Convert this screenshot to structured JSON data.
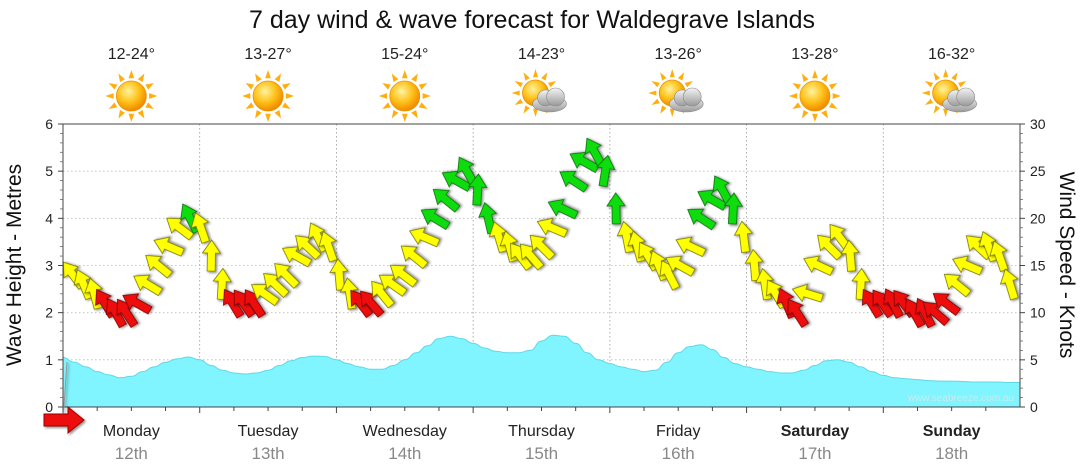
{
  "chart_data": {
    "type": "line+area",
    "title": "7 day wind & wave forecast for Waldegrave Islands",
    "ylabel_left": "Wave Height - Metres",
    "ylabel_right": "Wind Speed - Knots",
    "ylim_left": [
      0,
      6
    ],
    "ylim_right": [
      0,
      30
    ],
    "yticks_left": [
      "0",
      "1",
      "2",
      "3",
      "4",
      "5",
      "6"
    ],
    "yticks_right": [
      "0",
      "5",
      "10",
      "15",
      "20",
      "25",
      "30"
    ],
    "days": [
      {
        "name": "Monday",
        "date": "12th",
        "temp": "12-24°",
        "weather": "sunny",
        "bold": false
      },
      {
        "name": "Tuesday",
        "date": "13th",
        "temp": "13-27°",
        "weather": "sunny",
        "bold": false
      },
      {
        "name": "Wednesday",
        "date": "14th",
        "temp": "15-24°",
        "weather": "sunny",
        "bold": false
      },
      {
        "name": "Thursday",
        "date": "15th",
        "temp": "14-23°",
        "weather": "partly-cloudy",
        "bold": false
      },
      {
        "name": "Friday",
        "date": "16th",
        "temp": "13-26°",
        "weather": "partly-cloudy",
        "bold": false
      },
      {
        "name": "Saturday",
        "date": "17th",
        "temp": "13-28°",
        "weather": "sunny",
        "bold": true
      },
      {
        "name": "Sunday",
        "date": "18th",
        "temp": "16-32°",
        "weather": "partly-cloudy",
        "bold": true
      }
    ],
    "wave_height_m": [
      1.05,
      0.95,
      0.85,
      0.75,
      0.68,
      0.62,
      0.65,
      0.75,
      0.85,
      0.95,
      1.02,
      1.06,
      1.0,
      0.88,
      0.78,
      0.72,
      0.7,
      0.72,
      0.78,
      0.88,
      0.98,
      1.05,
      1.08,
      1.07,
      1.0,
      0.92,
      0.85,
      0.8,
      0.8,
      0.88,
      1.0,
      1.15,
      1.3,
      1.45,
      1.5,
      1.45,
      1.35,
      1.25,
      1.18,
      1.15,
      1.15,
      1.2,
      1.4,
      1.52,
      1.5,
      1.35,
      1.15,
      1.0,
      0.92,
      0.85,
      0.8,
      0.75,
      0.78,
      0.95,
      1.15,
      1.28,
      1.32,
      1.22,
      1.05,
      0.92,
      0.85,
      0.8,
      0.75,
      0.72,
      0.72,
      0.78,
      0.88,
      0.98,
      1.0,
      0.95,
      0.85,
      0.75,
      0.67,
      0.62,
      0.6,
      0.58,
      0.56,
      0.55,
      0.55,
      0.54,
      0.53,
      0.53,
      0.53,
      0.52,
      0.52
    ],
    "wind_knots": [
      14,
      13,
      12,
      11,
      10,
      10,
      11,
      13,
      15,
      17,
      19,
      20,
      19,
      16,
      13,
      11,
      11,
      11,
      12,
      13,
      14,
      16,
      17,
      18,
      17,
      14,
      12,
      11,
      11,
      12,
      13,
      14,
      16,
      18,
      20,
      22,
      24,
      25,
      23,
      20,
      18,
      17,
      16,
      16,
      17,
      19,
      21,
      24,
      26,
      27,
      25,
      21,
      18,
      17,
      16,
      15,
      14,
      15,
      17,
      20,
      22,
      23,
      21,
      18,
      15,
      13,
      12,
      11,
      10,
      12,
      15,
      17,
      18,
      16,
      13,
      11,
      11,
      11,
      11,
      10,
      10,
      10,
      11,
      13,
      15,
      17,
      17,
      16,
      13
    ]
  },
  "watermark": "www.seabreeze.com.au"
}
